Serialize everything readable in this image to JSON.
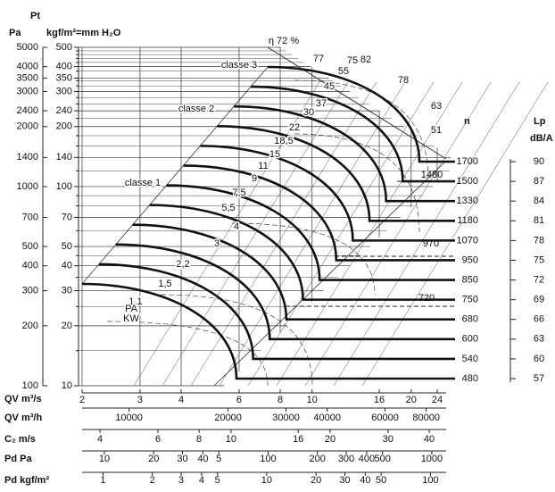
{
  "axis_titles": {
    "pt": "Pt",
    "pa": "Pa",
    "kgf": "kgf/m²=mm H₂O",
    "n": "n",
    "lp": "Lp",
    "lp_unit": "dB/A"
  },
  "chart_data": {
    "type": "fan-curve",
    "ylim": [
      10,
      500
    ],
    "yticks": [
      10,
      20,
      30,
      40,
      50,
      70,
      100,
      140,
      200,
      240,
      300,
      350,
      400,
      500
    ],
    "yminor": [
      15,
      25,
      35,
      45,
      60,
      80,
      90,
      120,
      160,
      180,
      220,
      260,
      280,
      320,
      340,
      380,
      420,
      440,
      460,
      480
    ],
    "pa_axis": {
      "ylim": [
        100,
        5000
      ],
      "yticks": [
        100,
        200,
        300,
        400,
        500,
        700,
        1000,
        1400,
        2000,
        2400,
        3000,
        3500,
        4000,
        5000
      ]
    },
    "x_label": "QV m³/s",
    "xlim": [
      2,
      24
    ],
    "xticks": [
      2,
      3,
      4,
      6,
      8,
      10,
      16,
      20,
      24
    ],
    "x_axes": [
      {
        "label": "QV m³/h",
        "xlim": [
          7200,
          86400
        ],
        "xticks": [
          10000,
          20000,
          30000,
          40000,
          60000,
          80000
        ]
      },
      {
        "label": "C₂ m/s",
        "xlim": [
          3.53,
          42.3
        ],
        "xticks": [
          4,
          6,
          8,
          10,
          16,
          20,
          30,
          40
        ]
      },
      {
        "label": "Pd Pa",
        "xlim": [
          7.31,
          1079
        ],
        "xticks": [
          10,
          20,
          30,
          40,
          {
            "value": 50,
            "label": "5"
          },
          100,
          200,
          300,
          400,
          500,
          1000
        ]
      },
      {
        "label": "Pd kgf/m²",
        "xlim": [
          0.745,
          110
        ],
        "xticks": [
          1,
          2,
          3,
          4,
          5,
          10,
          20,
          30,
          40,
          50,
          100
        ]
      }
    ],
    "speeds": [
      480,
      540,
      600,
      680,
      750,
      850,
      950,
      1070,
      1180,
      1330,
      1500,
      1700
    ],
    "dashed_speeds": [
      1480,
      970,
      720
    ],
    "lp": {
      "ylim": [
        57,
        90
      ],
      "yticks": [
        57,
        60,
        63,
        66,
        69,
        72,
        75,
        78,
        81,
        84,
        87,
        90
      ]
    },
    "annotations": [
      "η 72 %",
      "77",
      "75",
      "82",
      "78",
      "63",
      "51",
      "55",
      "45",
      "37",
      "30",
      "22",
      "18,5",
      "15",
      "11",
      "9",
      "7,5",
      "5,5",
      "4",
      "3",
      "2,2",
      "1,5",
      "1,1",
      "PA",
      "KW",
      "classe 3",
      "classe 2",
      "classe 1"
    ],
    "grid": true
  }
}
